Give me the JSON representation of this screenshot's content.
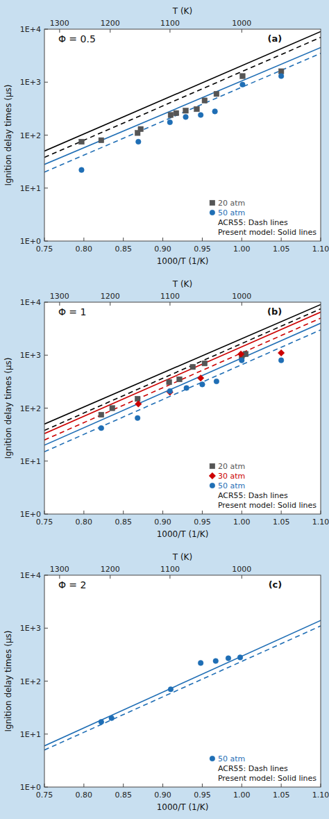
{
  "chart_data": [
    {
      "type": "scatter",
      "log": "y",
      "grid": false,
      "legend": "lower right",
      "xlabel": "1000/T (1/K)",
      "ylabel": "Ignition delay times (μs)",
      "x2label": "T (K)",
      "xlim": [
        0.75,
        1.1
      ],
      "ylim": [
        1.0,
        10000
      ],
      "xticks": [
        0.75,
        {
          "value": 0.8,
          "label": "0.80"
        },
        0.85,
        {
          "value": 0.9,
          "label": "0.90"
        },
        0.95,
        {
          "value": 1,
          "label": "1.00"
        },
        1.05,
        {
          "value": 1.1,
          "label": "1.10"
        }
      ],
      "yticks": [
        {
          "value": 1,
          "label": "1E+0"
        },
        {
          "value": 10,
          "label": "1E+1"
        },
        {
          "value": 100,
          "label": "1E+2"
        },
        {
          "value": 1000,
          "label": "1E+3"
        },
        {
          "value": 10000,
          "label": "1E+4"
        }
      ],
      "x2ticks": [
        {
          "value": 0.7692307692307693,
          "label": "1300"
        },
        {
          "value": 0.8333333333333334,
          "label": "1200"
        },
        {
          "value": 0.9090909090909091,
          "label": "1100"
        },
        {
          "value": 1,
          "label": "1000"
        }
      ],
      "annotations": [
        "Φ = 0.5",
        "(a)",
        "ACR55:  Dash lines",
        "Present model: Solid lines"
      ],
      "series": [
        {
          "name": "20 atm",
          "type": "scatter",
          "color": "#555555",
          "marker": "square",
          "x": [
            0.797,
            0.822,
            0.868,
            0.872,
            0.91,
            0.917,
            0.929,
            0.943,
            0.953,
            0.968,
            1.001,
            1.05
          ],
          "values": [
            75,
            80,
            110,
            130,
            240,
            260,
            290,
            310,
            450,
            600,
            1300,
            1600
          ]
        },
        {
          "name": "50 atm",
          "type": "scatter",
          "color": "#1f6eb5",
          "marker": "circle",
          "x": [
            0.797,
            0.869,
            0.909,
            0.929,
            0.948,
            0.966,
            1.001,
            1.05
          ],
          "values": [
            22,
            75,
            175,
            220,
            240,
            280,
            900,
            1300
          ]
        },
        {
          "type": "line",
          "color": "#000000",
          "line_style": "solid",
          "x": [
            0.75,
            1.1
          ],
          "values": [
            50,
            9000
          ]
        },
        {
          "type": "line",
          "color": "#000000",
          "line_style": "dashed",
          "x": [
            0.75,
            1.1
          ],
          "values": [
            38,
            7000
          ]
        },
        {
          "type": "line",
          "color": "#1f6eb5",
          "line_style": "solid",
          "x": [
            0.75,
            1.1
          ],
          "values": [
            28,
            4500
          ]
        },
        {
          "type": "line",
          "color": "#1f6eb5",
          "line_style": "dashed",
          "x": [
            0.75,
            1.1
          ],
          "values": [
            20,
            3500
          ]
        }
      ]
    },
    {
      "type": "scatter",
      "log": "y",
      "grid": false,
      "legend": "lower right",
      "xlabel": "1000/T (1/K)",
      "ylabel": "Ignition delay times (μs)",
      "x2label": "T (K)",
      "xlim": [
        0.75,
        1.1
      ],
      "ylim": [
        1.0,
        10000
      ],
      "xticks": [
        0.75,
        {
          "value": 0.8,
          "label": "0.80"
        },
        0.85,
        {
          "value": 0.9,
          "label": "0.90"
        },
        0.95,
        {
          "value": 1,
          "label": "1.00"
        },
        1.05,
        {
          "value": 1.1,
          "label": "1.10"
        }
      ],
      "yticks": [
        {
          "value": 1,
          "label": "1E+0"
        },
        {
          "value": 10,
          "label": "1E+1"
        },
        {
          "value": 100,
          "label": "1E+2"
        },
        {
          "value": 1000,
          "label": "1E+3"
        },
        {
          "value": 10000,
          "label": "1E+4"
        }
      ],
      "x2ticks": [
        {
          "value": 0.7692307692307693,
          "label": "1300"
        },
        {
          "value": 0.8333333333333334,
          "label": "1200"
        },
        {
          "value": 0.9090909090909091,
          "label": "1100"
        },
        {
          "value": 1,
          "label": "1000"
        }
      ],
      "annotations": [
        "Φ = 1",
        "(b)",
        "ACR55:  Dash lines",
        "Present model: Solid lines"
      ],
      "series": [
        {
          "name": "20 atm",
          "type": "scatter",
          "color": "#555555",
          "marker": "square",
          "x": [
            0.822,
            0.836,
            0.868,
            0.908,
            0.921,
            0.938,
            0.953,
            1.0,
            1.005
          ],
          "values": [
            75,
            100,
            150,
            310,
            350,
            600,
            700,
            950,
            1050
          ]
        },
        {
          "name": "30 atm",
          "type": "scatter",
          "color": "#cc0000",
          "marker": "diamond",
          "x": [
            0.869,
            0.909,
            0.948,
            0.999,
            1.05
          ],
          "values": [
            120,
            200,
            370,
            1050,
            1100
          ]
        },
        {
          "name": "50 atm",
          "type": "scatter",
          "color": "#1f6eb5",
          "marker": "circle",
          "x": [
            0.822,
            0.868,
            0.909,
            0.93,
            0.95,
            0.968,
            1.0,
            1.05
          ],
          "values": [
            42,
            65,
            210,
            240,
            280,
            320,
            800,
            800
          ]
        },
        {
          "type": "line",
          "color": "#000000",
          "line_style": "solid",
          "x": [
            0.75,
            1.1
          ],
          "values": [
            50,
            9000
          ]
        },
        {
          "type": "line",
          "color": "#000000",
          "line_style": "dashed",
          "x": [
            0.75,
            1.1
          ],
          "values": [
            38,
            7500
          ]
        },
        {
          "type": "line",
          "color": "#cc0000",
          "line_style": "solid",
          "x": [
            0.75,
            1.1
          ],
          "values": [
            33,
            6500
          ]
        },
        {
          "type": "line",
          "color": "#cc0000",
          "line_style": "dashed",
          "x": [
            0.75,
            1.1
          ],
          "values": [
            25,
            5000
          ]
        },
        {
          "type": "line",
          "color": "#1f6eb5",
          "line_style": "solid",
          "x": [
            0.75,
            1.1
          ],
          "values": [
            20,
            4000
          ]
        },
        {
          "type": "line",
          "color": "#1f6eb5",
          "line_style": "dashed",
          "x": [
            0.75,
            1.1
          ],
          "values": [
            15,
            3000
          ]
        }
      ]
    },
    {
      "type": "scatter",
      "log": "y",
      "grid": false,
      "legend": "lower right",
      "xlabel": "1000/T (1/K)",
      "ylabel": "Ignition delay times (μs)",
      "x2label": "T (K)",
      "xlim": [
        0.75,
        1.1
      ],
      "ylim": [
        1.0,
        10000
      ],
      "xticks": [
        0.75,
        {
          "value": 0.8,
          "label": "0.80"
        },
        0.85,
        {
          "value": 0.9,
          "label": "0.90"
        },
        0.95,
        {
          "value": 1,
          "label": "1.00"
        },
        1.05,
        {
          "value": 1.1,
          "label": "1.10"
        }
      ],
      "yticks": [
        {
          "value": 1,
          "label": "1E+0"
        },
        {
          "value": 10,
          "label": "1E+1"
        },
        {
          "value": 100,
          "label": "1E+2"
        },
        {
          "value": 1000,
          "label": "1E+3"
        },
        {
          "value": 10000,
          "label": "1E+4"
        }
      ],
      "x2ticks": [
        {
          "value": 0.7692307692307693,
          "label": "1300"
        },
        {
          "value": 0.8333333333333334,
          "label": "1200"
        },
        {
          "value": 0.9090909090909091,
          "label": "1100"
        },
        {
          "value": 1,
          "label": "1000"
        }
      ],
      "annotations": [
        "Φ = 2",
        "(c)",
        "ACR55:  Dash lines",
        "Present model: Solid lines"
      ],
      "series": [
        {
          "name": "50 atm",
          "type": "scatter",
          "color": "#1f6eb5",
          "marker": "circle",
          "x": [
            0.822,
            0.835,
            0.91,
            0.948,
            0.967,
            0.983,
            0.998
          ],
          "values": [
            17,
            20,
            70,
            220,
            240,
            270,
            280
          ]
        },
        {
          "type": "line",
          "color": "#1f6eb5",
          "line_style": "solid",
          "x": [
            0.75,
            1.1
          ],
          "values": [
            6,
            1400
          ]
        },
        {
          "type": "line",
          "color": "#1f6eb5",
          "line_style": "dashed",
          "x": [
            0.75,
            1.1
          ],
          "values": [
            5,
            1100
          ]
        }
      ]
    }
  ]
}
